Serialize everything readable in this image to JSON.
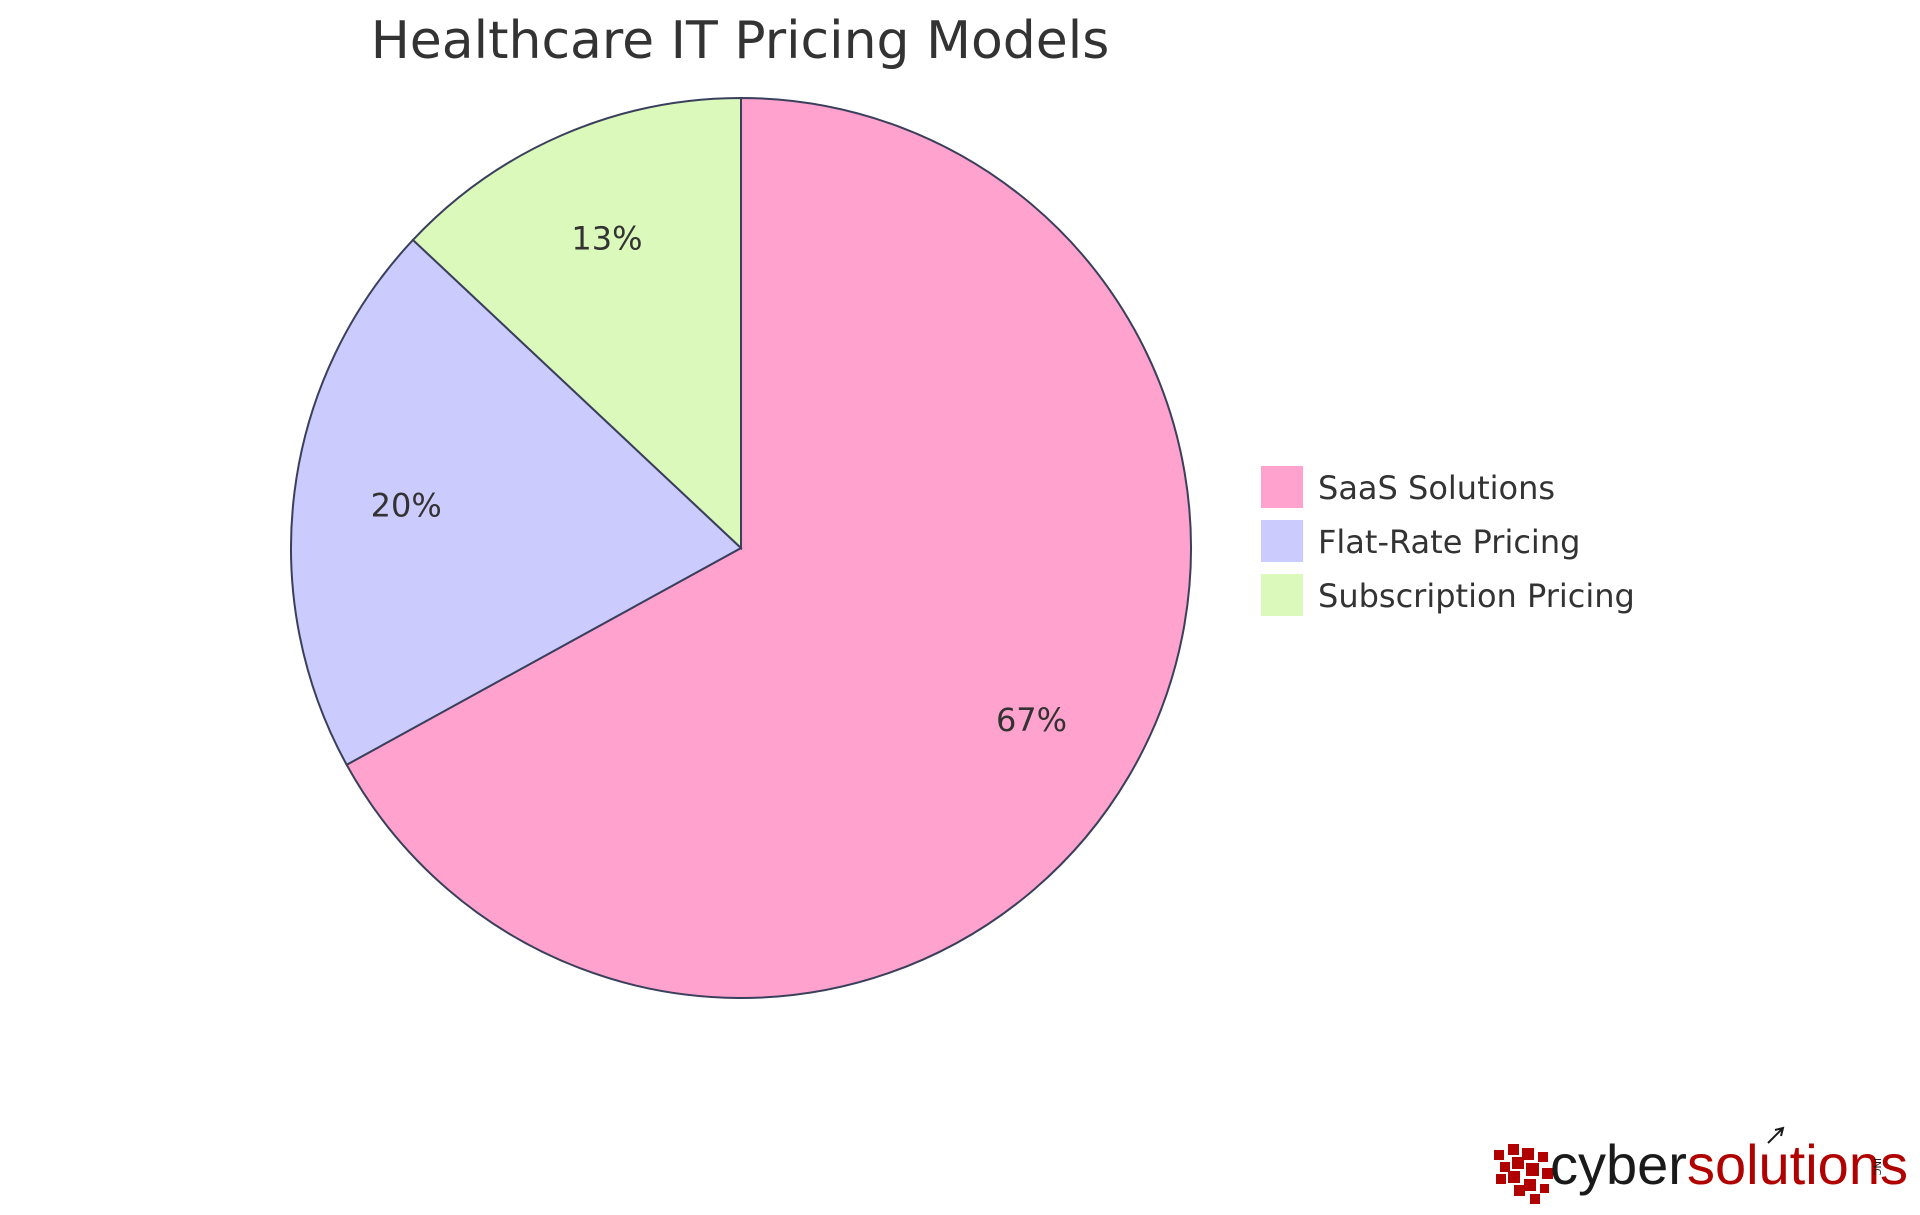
{
  "chart_data": {
    "type": "pie",
    "title": "Healthcare IT Pricing Models",
    "slices": [
      {
        "name": "SaaS Solutions",
        "value": 67,
        "label": "67%",
        "color": "#ffa2cd"
      },
      {
        "name": "Flat-Rate Pricing",
        "value": 20,
        "label": "20%",
        "color": "#cbcbfe"
      },
      {
        "name": "Subscription Pricing",
        "value": 13,
        "label": "13%",
        "color": "#dbf9bb"
      }
    ],
    "legend_position": "right",
    "stroke_color": "#3a3f5c"
  },
  "logo": {
    "brand_part1": "cyber",
    "brand_part2": "solutions",
    "suffix": "INC",
    "accent_color": "#b00000"
  }
}
